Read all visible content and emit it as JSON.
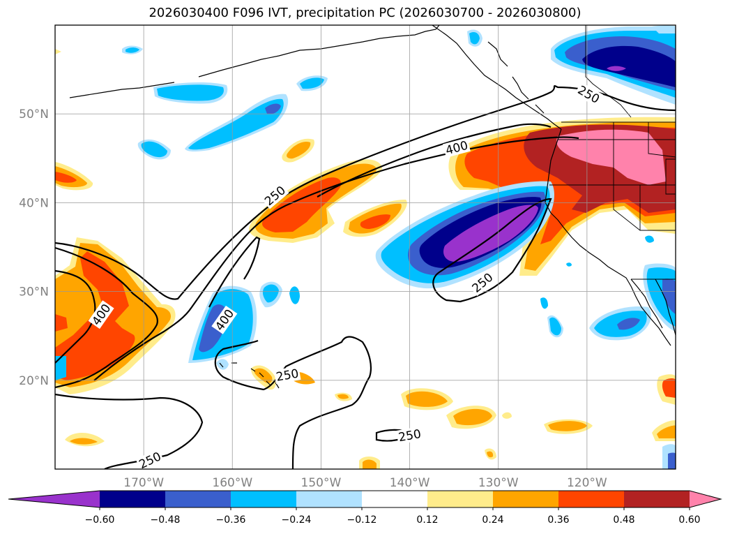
{
  "title": "2026030400 F096 IVT, precipitation PC (2026030700 - 2026030800)",
  "map": {
    "projection": "PlateCarree",
    "lon_range": [
      -180,
      -110
    ],
    "lat_range": [
      10,
      60
    ],
    "gridlines": true,
    "coastlines": true,
    "state_borders": true,
    "lon_ticks": [
      {
        "lon": -170,
        "label": "170°W"
      },
      {
        "lon": -160,
        "label": "160°W"
      },
      {
        "lon": -150,
        "label": "150°W"
      },
      {
        "lon": -140,
        "label": "140°W"
      },
      {
        "lon": -130,
        "label": "130°W"
      },
      {
        "lon": -120,
        "label": "120°W"
      }
    ],
    "lat_ticks": [
      {
        "lat": 50,
        "label": "50°N"
      },
      {
        "lat": 40,
        "label": "40°N"
      },
      {
        "lat": 30,
        "label": "30°N"
      },
      {
        "lat": 20,
        "label": "20°N"
      }
    ]
  },
  "colorbar": {
    "extend": "both",
    "colors": [
      "#9932CC",
      "#00008B",
      "#3A5FCD",
      "#00BFFF",
      "#B0E2FF",
      "#FFFFFF",
      "#FFEC8B",
      "#FFA500",
      "#FF4500",
      "#B22222",
      "#FF82AB"
    ],
    "tick_labels": [
      "−0.60",
      "−0.48",
      "−0.36",
      "−0.24",
      "−0.12",
      "0.12",
      "0.24",
      "0.36",
      "0.48",
      "0.60"
    ]
  },
  "ivt_contours": {
    "levels": [
      250,
      400
    ],
    "labels": [
      {
        "text": "250",
        "lon": -155.2,
        "lat": 40.8,
        "rot": -40
      },
      {
        "text": "400",
        "lon": -134.7,
        "lat": 46.2,
        "rot": -15
      },
      {
        "text": "250",
        "lon": -119.8,
        "lat": 52.2,
        "rot": 30
      },
      {
        "text": "250",
        "lon": -131.8,
        "lat": 31.0,
        "rot": -40
      },
      {
        "text": "400",
        "lon": -160.9,
        "lat": 26.8,
        "rot": -55
      },
      {
        "text": "400",
        "lon": -174.8,
        "lat": 27.4,
        "rot": -55
      },
      {
        "text": "250",
        "lon": -153.8,
        "lat": 20.6,
        "rot": -10
      },
      {
        "text": "250",
        "lon": -140.0,
        "lat": 13.8,
        "rot": -10
      },
      {
        "text": "250",
        "lon": -169.3,
        "lat": 11.0,
        "rot": -25
      }
    ]
  },
  "chart_data": {
    "type": "heatmap",
    "title": "2026030400 F096 IVT, precipitation PC (2026030700 - 2026030800)",
    "variables": [
      "IVT (contours)",
      "precipitation PC (filled)"
    ],
    "contour_levels": [
      250,
      400
    ],
    "fill_levels": [
      -0.6,
      -0.48,
      -0.36,
      -0.24,
      -0.12,
      0.12,
      0.24,
      0.36,
      0.48,
      0.6
    ],
    "extend": "both",
    "xlim": [
      -180,
      -110
    ],
    "ylim": [
      10,
      60
    ],
    "regions": [
      {
        "sign": "negative",
        "peak": -0.6,
        "lon": -131.5,
        "lat": 35.5
      },
      {
        "sign": "negative",
        "peak": -0.6,
        "lon": -119.0,
        "lat": 55.0
      },
      {
        "sign": "positive",
        "peak": 0.6,
        "lon": -117.5,
        "lat": 44.5
      },
      {
        "sign": "positive",
        "peak": 0.48,
        "lon": -150.0,
        "lat": 38.5
      },
      {
        "sign": "positive",
        "peak": 0.48,
        "lon": -173.0,
        "lat": 25.0
      },
      {
        "sign": "positive",
        "peak": 0.48,
        "lon": -144.0,
        "lat": 36.7
      },
      {
        "sign": "negative",
        "peak": -0.36,
        "lon": -161.5,
        "lat": 26.5
      },
      {
        "sign": "negative",
        "peak": -0.36,
        "lon": -158.0,
        "lat": 47.0
      },
      {
        "sign": "negative",
        "peak": -0.24,
        "lon": -165.0,
        "lat": 53.0
      }
    ]
  }
}
